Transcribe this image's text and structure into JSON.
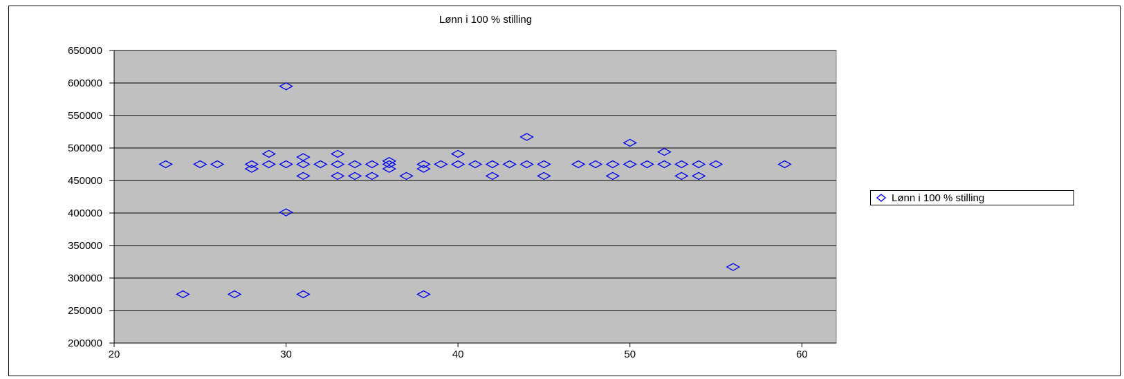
{
  "chart_data": {
    "type": "scatter",
    "title": "Lønn i 100 % stilling",
    "xlabel": "",
    "ylabel": "",
    "xlim": [
      20,
      62
    ],
    "ylim": [
      200000,
      650000
    ],
    "xticks": [
      20,
      30,
      40,
      50,
      60
    ],
    "yticks": [
      200000,
      250000,
      300000,
      350000,
      400000,
      450000,
      500000,
      550000,
      600000,
      650000
    ],
    "grid": true,
    "legend_position": "right",
    "colors": {
      "marker": "#0000ee",
      "plot_bg": "#c0c0c0",
      "grid": "#000000"
    },
    "series": [
      {
        "name": "Lønn i 100 % stilling",
        "marker": "diamond",
        "points": [
          [
            23,
            475000
          ],
          [
            24,
            275000
          ],
          [
            25,
            475000
          ],
          [
            26,
            475000
          ],
          [
            27,
            275000
          ],
          [
            28,
            475000
          ],
          [
            28,
            468000
          ],
          [
            29,
            491000
          ],
          [
            29,
            475000
          ],
          [
            30,
            595000
          ],
          [
            30,
            475000
          ],
          [
            30,
            401000
          ],
          [
            31,
            486000
          ],
          [
            31,
            475000
          ],
          [
            31,
            457000
          ],
          [
            31,
            275000
          ],
          [
            32,
            475000
          ],
          [
            33,
            491000
          ],
          [
            33,
            475000
          ],
          [
            33,
            457000
          ],
          [
            34,
            475000
          ],
          [
            34,
            457000
          ],
          [
            35,
            475000
          ],
          [
            35,
            457000
          ],
          [
            36,
            480000
          ],
          [
            36,
            475000
          ],
          [
            36,
            468000
          ],
          [
            37,
            457000
          ],
          [
            38,
            475000
          ],
          [
            38,
            468000
          ],
          [
            38,
            275000
          ],
          [
            39,
            475000
          ],
          [
            40,
            491000
          ],
          [
            40,
            475000
          ],
          [
            41,
            475000
          ],
          [
            42,
            475000
          ],
          [
            42,
            457000
          ],
          [
            43,
            475000
          ],
          [
            44,
            517000
          ],
          [
            44,
            475000
          ],
          [
            45,
            475000
          ],
          [
            45,
            457000
          ],
          [
            47,
            475000
          ],
          [
            48,
            475000
          ],
          [
            49,
            475000
          ],
          [
            49,
            457000
          ],
          [
            50,
            508000
          ],
          [
            50,
            475000
          ],
          [
            51,
            475000
          ],
          [
            52,
            494000
          ],
          [
            52,
            475000
          ],
          [
            53,
            475000
          ],
          [
            53,
            457000
          ],
          [
            54,
            475000
          ],
          [
            54,
            457000
          ],
          [
            55,
            475000
          ],
          [
            56,
            317000
          ],
          [
            59,
            475000
          ]
        ]
      }
    ]
  }
}
